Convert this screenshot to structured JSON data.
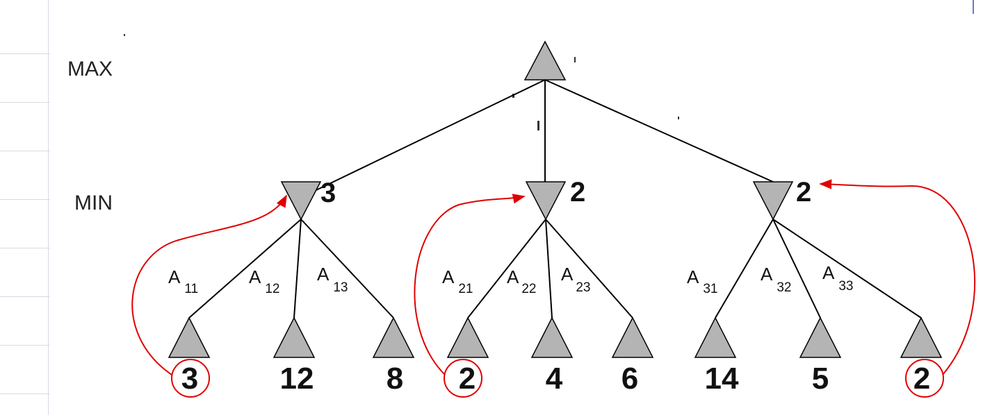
{
  "labels": {
    "max": "MAX",
    "min": "MIN"
  },
  "min_values": [
    "3",
    "2",
    "2"
  ],
  "edges": [
    {
      "letter": "A",
      "sub": "11"
    },
    {
      "letter": "A",
      "sub": "12"
    },
    {
      "letter": "A",
      "sub": "13"
    },
    {
      "letter": "A",
      "sub": "21"
    },
    {
      "letter": "A",
      "sub": "22"
    },
    {
      "letter": "A",
      "sub": "23"
    },
    {
      "letter": "A",
      "sub": "31"
    },
    {
      "letter": "A",
      "sub": "32"
    },
    {
      "letter": "A",
      "sub": "33"
    }
  ],
  "leaf_values": [
    "3",
    "12",
    "8",
    "2",
    "4",
    "6",
    "14",
    "5",
    "2"
  ],
  "colors": {
    "node_fill": "#b4b4b4",
    "highlight": "#e00000",
    "grid": "#d4dbe3"
  }
}
